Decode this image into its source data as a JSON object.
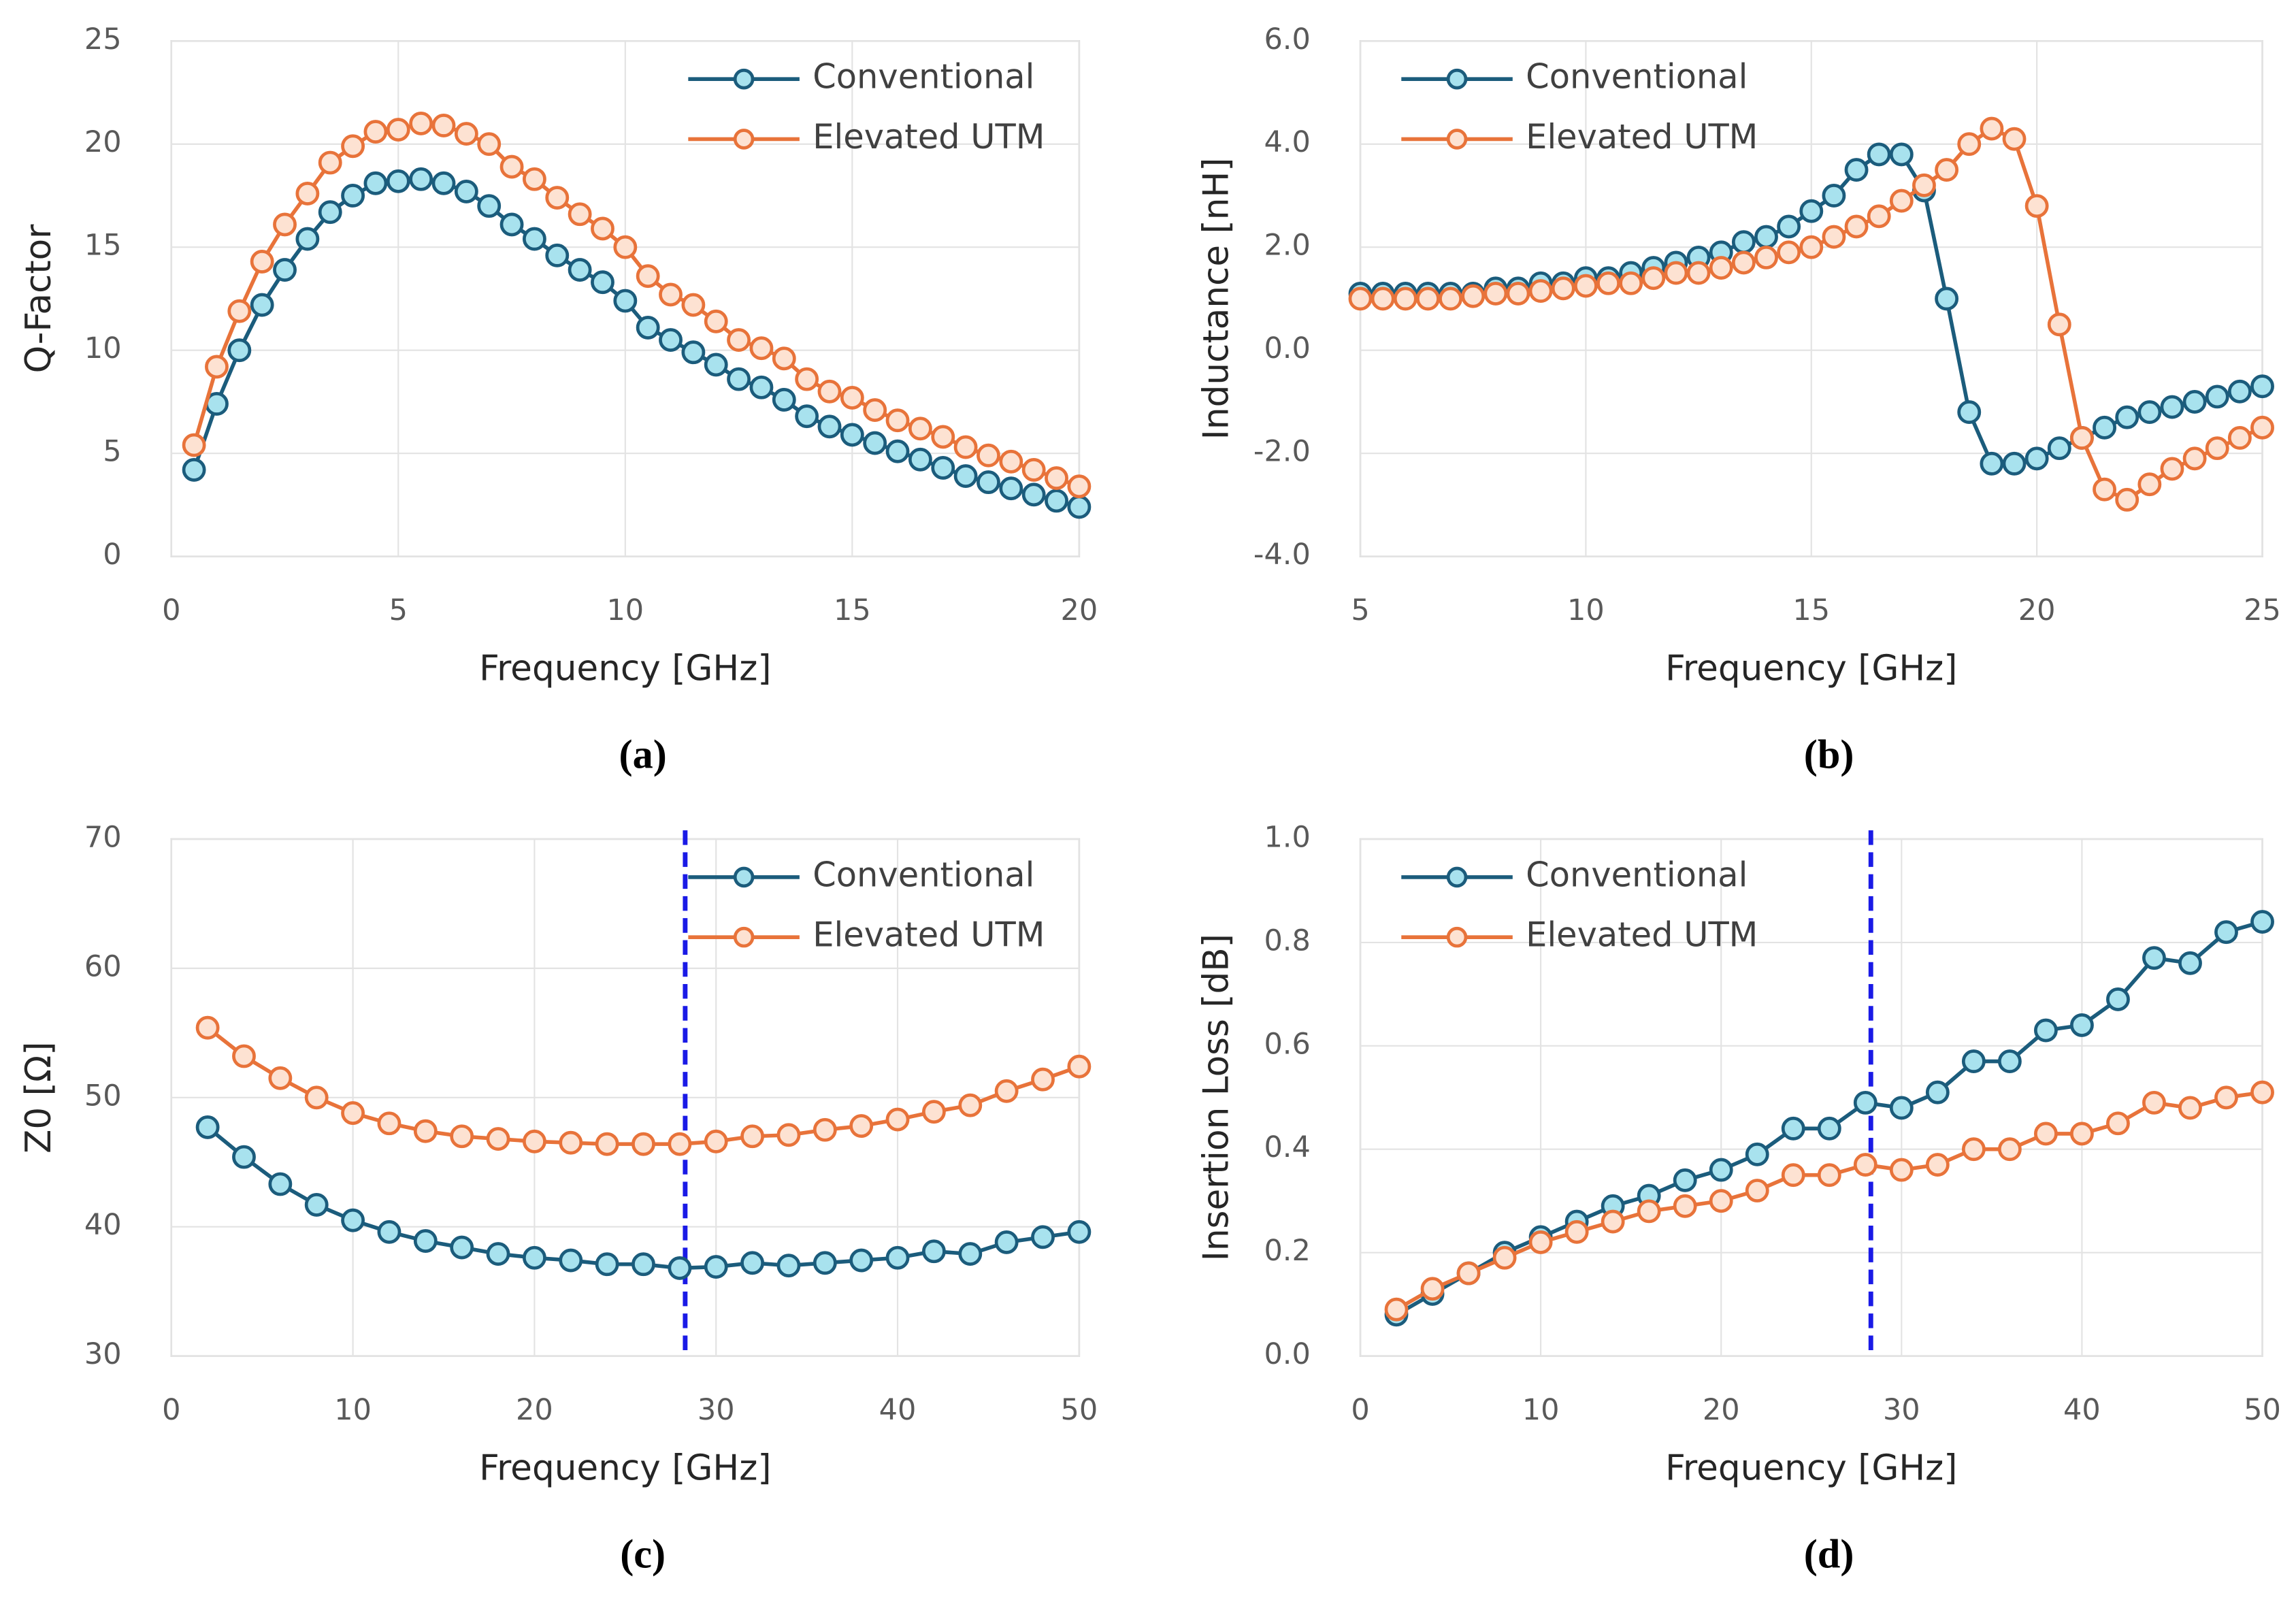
{
  "chart_data": [
    {
      "type": "line",
      "panel": "(a)",
      "x_label": "Frequency [GHz]",
      "y_label": "Q-Factor",
      "x": [
        0.5,
        1,
        1.5,
        2,
        2.5,
        3,
        3.5,
        4,
        4.5,
        5,
        5.5,
        6,
        6.5,
        7,
        7.5,
        8,
        8.5,
        9,
        9.5,
        10,
        10.5,
        11,
        11.5,
        12,
        12.5,
        13,
        13.5,
        14,
        14.5,
        15,
        15.5,
        16,
        16.5,
        17,
        17.5,
        18,
        18.5,
        19,
        19.5,
        20
      ],
      "series": [
        {
          "name": "Conventional",
          "color": "#1b5c7c",
          "marker_color": "#a8e2ee",
          "values": [
            4.2,
            7.4,
            10,
            12.2,
            13.9,
            15.4,
            16.7,
            17.5,
            18.1,
            18.2,
            18.3,
            18.1,
            17.7,
            17.0,
            16.1,
            15.4,
            14.6,
            13.9,
            13.3,
            12.4,
            11.1,
            10.5,
            9.9,
            9.3,
            8.6,
            8.2,
            7.6,
            6.8,
            6.3,
            5.9,
            5.5,
            5.1,
            4.7,
            4.3,
            3.9,
            3.6,
            3.3,
            3.0,
            2.7,
            2.4
          ]
        },
        {
          "name": "Elevated UTM",
          "color": "#e8733a",
          "marker_color": "#fde2d2",
          "values": [
            5.4,
            9.2,
            11.9,
            14.3,
            16.1,
            17.6,
            19.1,
            19.9,
            20.6,
            20.7,
            21.0,
            20.9,
            20.5,
            20.0,
            18.9,
            18.3,
            17.4,
            16.6,
            15.9,
            15.0,
            13.6,
            12.7,
            12.2,
            11.4,
            10.5,
            10.1,
            9.6,
            8.6,
            8.0,
            7.7,
            7.1,
            6.6,
            6.2,
            5.8,
            5.3,
            4.9,
            4.6,
            4.2,
            3.8,
            3.4
          ]
        }
      ],
      "xlim": [
        0,
        20
      ],
      "xticks": [
        0,
        5,
        10,
        15,
        20
      ],
      "ylim": [
        0,
        25
      ],
      "yticks": [
        0,
        5,
        10,
        15,
        20,
        25
      ],
      "grid": true,
      "legend": "upper right"
    },
    {
      "type": "line",
      "panel": "(b)",
      "x_label": "Frequency [GHz]",
      "y_label": "Inductance [nH]",
      "x": [
        5,
        5.5,
        6,
        6.5,
        7,
        7.5,
        8,
        8.5,
        9,
        9.5,
        10,
        10.5,
        11,
        11.5,
        12,
        12.5,
        13,
        13.5,
        14,
        14.5,
        15,
        15.5,
        16,
        16.5,
        17,
        17.5,
        18,
        18.5,
        19,
        19.5,
        20,
        20.5,
        21,
        21.5,
        22,
        22.5,
        23,
        23.5,
        24,
        24.5,
        25
      ],
      "series": [
        {
          "name": "Conventional",
          "color": "#1b5c7c",
          "marker_color": "#a8e2ee",
          "values": [
            1.1,
            1.1,
            1.1,
            1.1,
            1.1,
            1.1,
            1.2,
            1.2,
            1.3,
            1.3,
            1.4,
            1.4,
            1.5,
            1.6,
            1.7,
            1.8,
            1.9,
            2.1,
            2.2,
            2.4,
            2.7,
            3.0,
            3.5,
            3.8,
            3.8,
            3.1,
            1.0,
            -1.2,
            -2.2,
            -2.2,
            -2.1,
            -1.9,
            -1.7,
            -1.5,
            -1.3,
            -1.2,
            -1.1,
            -1.0,
            -0.9,
            -0.8,
            -0.7
          ]
        },
        {
          "name": "Elevated UTM",
          "color": "#e8733a",
          "marker_color": "#fde2d2",
          "values": [
            1.0,
            1.0,
            1.0,
            1.0,
            1.0,
            1.05,
            1.1,
            1.1,
            1.15,
            1.2,
            1.25,
            1.3,
            1.3,
            1.4,
            1.5,
            1.5,
            1.6,
            1.7,
            1.8,
            1.9,
            2.0,
            2.2,
            2.4,
            2.6,
            2.9,
            3.2,
            3.5,
            4.0,
            4.3,
            4.1,
            2.8,
            0.5,
            -1.7,
            -2.7,
            -2.9,
            -2.6,
            -2.3,
            -2.1,
            -1.9,
            -1.7,
            -1.5
          ]
        }
      ],
      "xlim": [
        5,
        25
      ],
      "xticks": [
        5,
        10,
        15,
        20,
        25
      ],
      "ylim": [
        -4,
        6
      ],
      "yticks": [
        {
          "value": -4,
          "label": "-4.0"
        },
        {
          "value": -2,
          "label": "-2.0"
        },
        {
          "value": 0,
          "label": "0.0"
        },
        {
          "value": 2,
          "label": "2.0"
        },
        {
          "value": 4,
          "label": "4.0"
        },
        {
          "value": 6,
          "label": "6.0"
        }
      ],
      "grid": true,
      "legend": "upper left"
    },
    {
      "type": "line",
      "panel": "(c)",
      "x_label": "Frequency [GHz]",
      "y_label": "Z0 [Ω]",
      "x": [
        2,
        4,
        6,
        8,
        10,
        12,
        14,
        16,
        18,
        20,
        22,
        24,
        26,
        28,
        30,
        32,
        34,
        36,
        38,
        40,
        42,
        44,
        46,
        48,
        50
      ],
      "series": [
        {
          "name": "Conventional",
          "color": "#1b5c7c",
          "marker_color": "#a8e2ee",
          "values": [
            47.7,
            45.4,
            43.3,
            41.7,
            40.5,
            39.6,
            38.9,
            38.4,
            37.9,
            37.6,
            37.4,
            37.1,
            37.1,
            36.8,
            36.9,
            37.2,
            37.0,
            37.2,
            37.4,
            37.6,
            38.1,
            37.9,
            38.8,
            39.2,
            39.6
          ]
        },
        {
          "name": "Elevated UTM",
          "color": "#e8733a",
          "marker_color": "#fde2d2",
          "values": [
            55.4,
            53.2,
            51.5,
            50.0,
            48.8,
            48.0,
            47.4,
            47.0,
            46.8,
            46.6,
            46.5,
            46.4,
            46.4,
            46.4,
            46.6,
            47.0,
            47.1,
            47.5,
            47.8,
            48.3,
            48.9,
            49.4,
            50.5,
            51.4,
            52.4
          ]
        }
      ],
      "xlim": [
        0,
        50
      ],
      "xticks": [
        0,
        10,
        20,
        30,
        40,
        50
      ],
      "ylim": [
        30,
        70
      ],
      "yticks": [
        30,
        40,
        50,
        60,
        70
      ],
      "grid": true,
      "legend": "upper right",
      "vline": {
        "x": 28.3,
        "color": "#1a1ae6"
      }
    },
    {
      "type": "line",
      "panel": "(d)",
      "x_label": "Frequency [GHz]",
      "y_label": "Insertion Loss [dB]",
      "x": [
        2,
        4,
        6,
        8,
        10,
        12,
        14,
        16,
        18,
        20,
        22,
        24,
        26,
        28,
        30,
        32,
        34,
        36,
        38,
        40,
        42,
        44,
        46,
        48,
        50
      ],
      "series": [
        {
          "name": "Conventional",
          "color": "#1b5c7c",
          "marker_color": "#a8e2ee",
          "values": [
            0.08,
            0.12,
            0.16,
            0.2,
            0.23,
            0.26,
            0.29,
            0.31,
            0.34,
            0.36,
            0.39,
            0.44,
            0.44,
            0.49,
            0.48,
            0.51,
            0.57,
            0.57,
            0.63,
            0.64,
            0.69,
            0.77,
            0.76,
            0.82,
            0.84
          ]
        },
        {
          "name": "Elevated UTM",
          "color": "#e8733a",
          "marker_color": "#fde2d2",
          "values": [
            0.09,
            0.13,
            0.16,
            0.19,
            0.22,
            0.24,
            0.26,
            0.28,
            0.29,
            0.3,
            0.32,
            0.35,
            0.35,
            0.37,
            0.36,
            0.37,
            0.4,
            0.4,
            0.43,
            0.43,
            0.45,
            0.49,
            0.48,
            0.5,
            0.51
          ]
        }
      ],
      "xlim": [
        0,
        50
      ],
      "xticks": [
        0,
        10,
        20,
        30,
        40,
        50
      ],
      "ylim": [
        0,
        1
      ],
      "yticks": [
        {
          "value": 0,
          "label": "0.0"
        },
        {
          "value": 0.2,
          "label": "0.2"
        },
        {
          "value": 0.4,
          "label": "0.4"
        },
        {
          "value": 0.6,
          "label": "0.6"
        },
        {
          "value": 0.8,
          "label": "0.8"
        },
        {
          "value": 1,
          "label": "1.0"
        }
      ],
      "grid": true,
      "legend": "upper left",
      "vline": {
        "x": 28.3,
        "color": "#1a1ae6"
      }
    }
  ]
}
